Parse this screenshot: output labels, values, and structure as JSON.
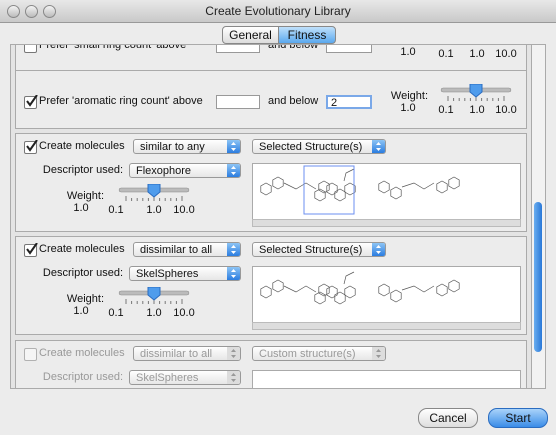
{
  "window": {
    "title": "Create Evolutionary Library"
  },
  "tabs": [
    {
      "label": "General",
      "selected": false
    },
    {
      "label": "Fitness",
      "selected": true
    }
  ],
  "panels": [
    {
      "kind": "ring",
      "checked": false,
      "enabled": true,
      "label": "Prefer 'small ring count' above",
      "below_label": "and below",
      "below_value": "",
      "weight": "1.0",
      "ticks": [
        "0.1",
        "1.0",
        "10.0"
      ]
    },
    {
      "kind": "ring",
      "checked": true,
      "enabled": true,
      "label": "Prefer 'aromatic ring count' above",
      "below_label": "and below",
      "below_value": "2",
      "weight_label": "Weight:",
      "weight": "1.0",
      "ticks": [
        "0.1",
        "1.0",
        "10.0"
      ]
    },
    {
      "kind": "molecules",
      "checked": true,
      "enabled": true,
      "label": "Create molecules",
      "mode": "similar to any",
      "source": "Selected Structure(s)",
      "descriptor_label": "Descriptor used:",
      "descriptor": "Flexophore",
      "weight_label": "Weight:",
      "weight": "1.0",
      "ticks": [
        "0.1",
        "1.0",
        "10.0"
      ]
    },
    {
      "kind": "molecules",
      "checked": true,
      "enabled": true,
      "label": "Create molecules",
      "mode": "dissimilar to all",
      "source": "Selected Structure(s)",
      "descriptor_label": "Descriptor used:",
      "descriptor": "SkelSpheres",
      "weight_label": "Weight:",
      "weight": "1.0",
      "ticks": [
        "0.1",
        "1.0",
        "10.0"
      ]
    },
    {
      "kind": "molecules",
      "checked": false,
      "enabled": false,
      "label": "Create molecules",
      "mode": "dissimilar to all",
      "source": "Custom structure(s)",
      "descriptor_label": "Descriptor used:",
      "descriptor": "SkelSpheres"
    }
  ],
  "buttons": [
    {
      "label": "Cancel",
      "default": false
    },
    {
      "label": "Start",
      "default": true
    }
  ]
}
